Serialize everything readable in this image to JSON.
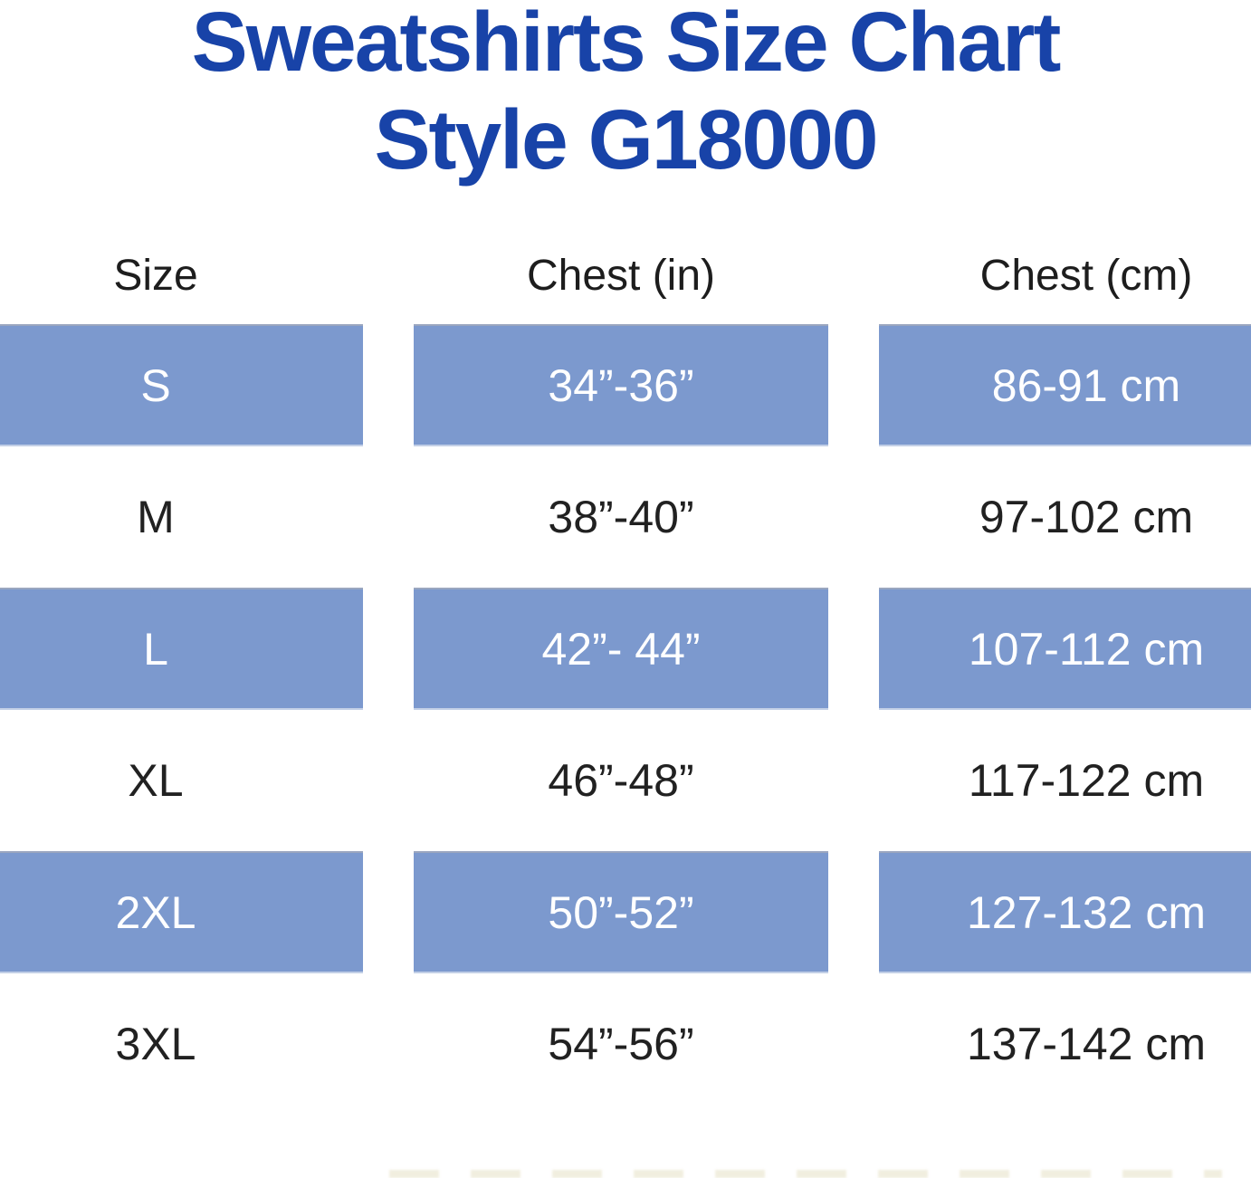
{
  "title": {
    "line1": "Sweatshirts Size Chart",
    "line2": "Style G18000"
  },
  "chart_data": {
    "type": "table",
    "title": "Sweatshirts Size Chart Style G18000",
    "columns": [
      "Size",
      "Chest (in)",
      "Chest (cm)"
    ],
    "rows": [
      [
        "S",
        "34”-36”",
        "86-91 cm"
      ],
      [
        "M",
        "38”-40”",
        "97-102 cm"
      ],
      [
        "L",
        "42”- 44”",
        "107-112 cm"
      ],
      [
        "XL",
        "46”-48”",
        "117-122 cm"
      ],
      [
        "2XL",
        "50”-52”",
        "127-132 cm"
      ],
      [
        "3XL",
        "54”-56”",
        "137-142 cm"
      ]
    ],
    "highlighted_row_indices": [
      0,
      2,
      4
    ],
    "layout": {
      "header_position": "top",
      "row_style": "alternating blue highlight bands starting with first data row",
      "grid": "off"
    }
  },
  "colors": {
    "highlight_blue": "#7c99ce",
    "title_blue": "#1843a8",
    "text_dark": "#212121",
    "text_on_blue": "#ffffff"
  }
}
